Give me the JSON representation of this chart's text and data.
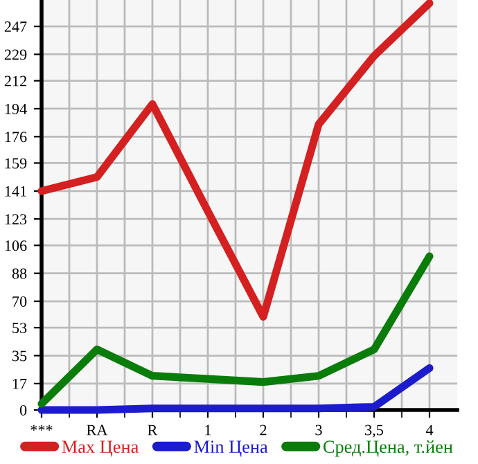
{
  "chart_data": {
    "type": "line",
    "categories": [
      "***",
      "RA",
      "R",
      "1",
      "2",
      "3",
      "3,5",
      "4"
    ],
    "series": [
      {
        "name": "Max Цена",
        "color": "#d42020",
        "values": [
          141,
          150,
          197,
          128,
          60,
          184,
          228,
          262
        ]
      },
      {
        "name": "Min Цена",
        "color": "#1c1ccc",
        "values": [
          0,
          0,
          1,
          1,
          1,
          1,
          2,
          27
        ]
      },
      {
        "name": "Сред.Цена, т.йен",
        "color": "#0a7c0a",
        "values": [
          4,
          39,
          22,
          20,
          18,
          22,
          39,
          99
        ]
      }
    ],
    "ylim": [
      0,
      264
    ],
    "yticks": [
      0,
      17,
      35,
      53,
      70,
      88,
      106,
      123,
      141,
      159,
      176,
      194,
      212,
      229,
      247
    ],
    "grid": true,
    "legend": "bottom",
    "marker": "none",
    "line_style": "solid"
  }
}
